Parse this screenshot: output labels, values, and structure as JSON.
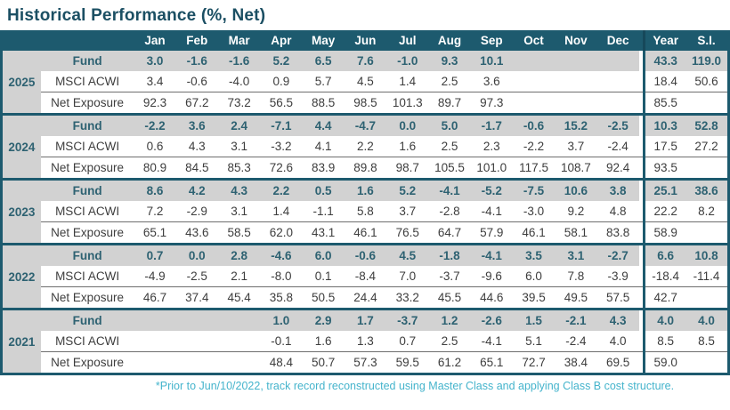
{
  "title": "Historical Performance (%, Net)",
  "columns": [
    "Jan",
    "Feb",
    "Mar",
    "Apr",
    "May",
    "Jun",
    "Jul",
    "Aug",
    "Sep",
    "Oct",
    "Nov",
    "Dec",
    "Year",
    "S.I."
  ],
  "row_labels": {
    "fund": "Fund",
    "benchmark": "MSCI ACWI",
    "exposure": "Net Exposure"
  },
  "years": [
    {
      "year": "2025",
      "fund": [
        "3.0",
        "-1.6",
        "-1.6",
        "5.2",
        "6.5",
        "7.6",
        "-1.0",
        "9.3",
        "10.1",
        "",
        "",
        "",
        "43.3",
        "119.0"
      ],
      "benchmark": [
        "3.4",
        "-0.6",
        "-4.0",
        "0.9",
        "5.7",
        "4.5",
        "1.4",
        "2.5",
        "3.6",
        "",
        "",
        "",
        "18.4",
        "50.6"
      ],
      "exposure": [
        "92.3",
        "67.2",
        "73.2",
        "56.5",
        "88.5",
        "98.5",
        "101.3",
        "89.7",
        "97.3",
        "",
        "",
        "",
        "85.5",
        ""
      ]
    },
    {
      "year": "2024",
      "fund": [
        "-2.2",
        "3.6",
        "2.4",
        "-7.1",
        "4.4",
        "-4.7",
        "0.0",
        "5.0",
        "-1.7",
        "-0.6",
        "15.2",
        "-2.5",
        "10.3",
        "52.8"
      ],
      "benchmark": [
        "0.6",
        "4.3",
        "3.1",
        "-3.2",
        "4.1",
        "2.2",
        "1.6",
        "2.5",
        "2.3",
        "-2.2",
        "3.7",
        "-2.4",
        "17.5",
        "27.2"
      ],
      "exposure": [
        "80.9",
        "84.5",
        "85.3",
        "72.6",
        "83.9",
        "89.8",
        "98.7",
        "105.5",
        "101.0",
        "117.5",
        "108.7",
        "92.4",
        "93.5",
        ""
      ]
    },
    {
      "year": "2023",
      "fund": [
        "8.6",
        "4.2",
        "4.3",
        "2.2",
        "0.5",
        "1.6",
        "5.2",
        "-4.1",
        "-5.2",
        "-7.5",
        "10.6",
        "3.8",
        "25.1",
        "38.6"
      ],
      "benchmark": [
        "7.2",
        "-2.9",
        "3.1",
        "1.4",
        "-1.1",
        "5.8",
        "3.7",
        "-2.8",
        "-4.1",
        "-3.0",
        "9.2",
        "4.8",
        "22.2",
        "8.2"
      ],
      "exposure": [
        "65.1",
        "43.6",
        "58.5",
        "62.0",
        "43.1",
        "46.1",
        "76.5",
        "64.7",
        "57.9",
        "46.1",
        "58.1",
        "83.8",
        "58.9",
        ""
      ]
    },
    {
      "year": "2022",
      "fund": [
        "0.7",
        "0.0",
        "2.8",
        "-4.6",
        "6.0",
        "-0.6",
        "4.5",
        "-1.8",
        "-4.1",
        "3.5",
        "3.1",
        "-2.7",
        "6.6",
        "10.8"
      ],
      "benchmark": [
        "-4.9",
        "-2.5",
        "2.1",
        "-8.0",
        "0.1",
        "-8.4",
        "7.0",
        "-3.7",
        "-9.6",
        "6.0",
        "7.8",
        "-3.9",
        "-18.4",
        "-11.4"
      ],
      "exposure": [
        "46.7",
        "37.4",
        "45.4",
        "35.8",
        "50.5",
        "24.4",
        "33.2",
        "45.5",
        "44.6",
        "39.5",
        "49.5",
        "57.5",
        "42.7",
        ""
      ]
    },
    {
      "year": "2021",
      "fund": [
        "",
        "",
        "",
        "1.0",
        "2.9",
        "1.7",
        "-3.7",
        "1.2",
        "-2.6",
        "1.5",
        "-2.1",
        "4.3",
        "4.0",
        "4.0"
      ],
      "benchmark": [
        "",
        "",
        "",
        "-0.1",
        "1.6",
        "1.3",
        "0.7",
        "2.5",
        "-4.1",
        "5.1",
        "-2.4",
        "4.0",
        "8.5",
        "8.5"
      ],
      "exposure": [
        "",
        "",
        "",
        "48.4",
        "50.7",
        "57.3",
        "59.5",
        "61.2",
        "65.1",
        "72.7",
        "38.4",
        "69.5",
        "59.0",
        ""
      ]
    }
  ],
  "footnote": "*Prior to Jun/10/2022, track record reconstructed using Master Class and applying Class B cost structure.",
  "colors": {
    "teal_dark": "#1d5a6e",
    "fund_row_bg": "#d2d2d2",
    "fund_text": "#2e6272",
    "body_text": "#3d3d3d",
    "title_text": "#1b4f63",
    "footnote_text": "#45b4cc"
  }
}
